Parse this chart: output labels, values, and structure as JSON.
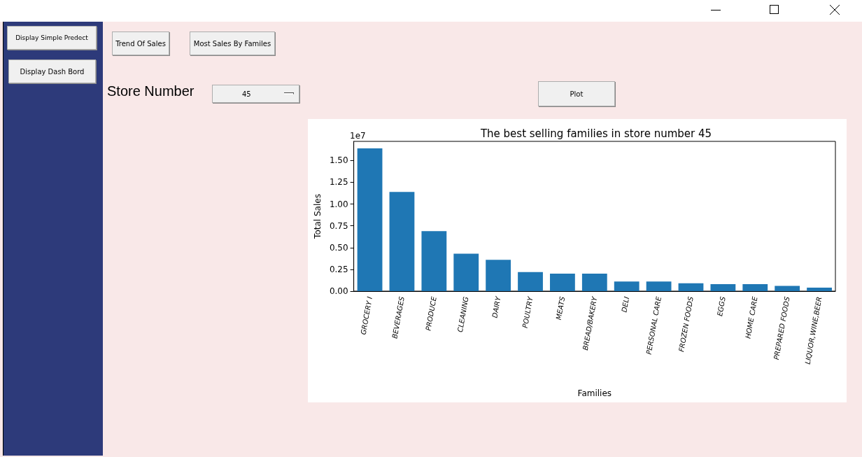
{
  "chart_data": {
    "type": "bar",
    "title": "The best selling families in store number 45",
    "xlabel": "Families",
    "ylabel": "Total Sales",
    "categories": [
      "GROCERY I",
      "BEVERAGES",
      "PRODUCE",
      "CLEANING",
      "DAIRY",
      "POULTRY",
      "MEATS",
      "BREAD/BAKERY",
      "DELI",
      "PERSONAL CARE",
      "FROZEN FOODS",
      "EGGS",
      "HOME CARE",
      "PREPARED FOODS",
      "LIQUOR,WINE,BEER"
    ],
    "values": [
      1.64,
      1.14,
      0.69,
      0.43,
      0.36,
      0.22,
      0.2,
      0.2,
      0.11,
      0.11,
      0.09,
      0.08,
      0.08,
      0.06,
      0.04
    ],
    "color": "#1f77b4",
    "ylim": [
      0,
      1.72
    ],
    "yticks": [
      {
        "value": 0,
        "label": "0.00"
      },
      {
        "value": 0.25,
        "label": "0.25"
      },
      {
        "value": 0.5,
        "label": "0.50"
      },
      {
        "value": 0.75,
        "label": "0.75"
      },
      {
        "value": 1,
        "label": "1.00"
      },
      {
        "value": 1.25,
        "label": "1.25"
      },
      {
        "value": 1.5,
        "label": "1.50"
      }
    ],
    "grid": false,
    "annotations": [
      "1e7",
      "Display Simple Predect",
      "Display Dash Bord",
      "Trend Of Sales",
      "Most Sales By Familes",
      "Store Number",
      "45",
      "Plot"
    ]
  }
}
